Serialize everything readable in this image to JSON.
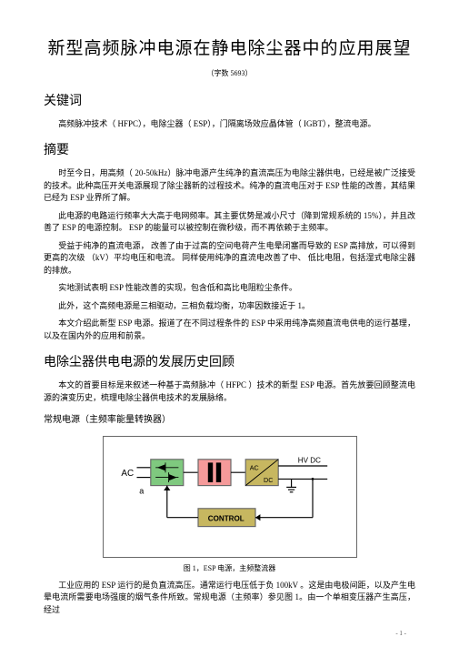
{
  "title": "新型高频脉冲电源在静电除尘器中的应用展望",
  "wordcount": "（字数  5693）",
  "sections": {
    "keywords": {
      "heading": "关键词",
      "p1": "高频脉冲技术（  HFPC），电除尘器（  ESP），门隔离场效应晶体管（  IGBT），整流电源。"
    },
    "abstract": {
      "heading": "摘要",
      "p1": "时至今日，用高频（  20-50kHz）脉冲电源产生纯净的直流高压为电除尘器供电，已经是被广泛接受的技术。此种高压开关电源展现了除尘器新的过程技术。纯净的直流电压对于     ESP 性能的改善，其结果已经为 ESP 业界所了解。",
      "p2": "此电源的电路运行频率大大高于电网频率。其主要优势是减小尺寸（降到常规系统的           15%），并且改善了 ESP 的电源控制。  ESP 的能量可以被控制在微秒级，而不再依赖于主频率。",
      "p3": "受益于纯净的直流电源，  改善了由于过高的空间电荷产生电晕闭塞而导致的    ESP 高排放，可以得到更高的次级 （kV）平均电压和电流。  同样使用纯净的直流电改善了中、  低比电阻，包括湿式电除尘器的排放。",
      "p4": "实地测试表明   ESP 性能改善的实现，包含低和高比电阻粒尘条件。",
      "p5": "此外，这个高频电源是三相驱动，三相负载均衡，功率因数接近于         1。",
      "p6": "本文介绍此新型   ESP 电源。报道了在不同过程条件的     ESP 中采用纯净高频直流电供电的运行基理，以及在国内外的应用和前景。"
    },
    "history": {
      "heading": "电除尘器供电电源的发展历史回顾",
      "p1": "本文的首要目标是来叙述一种基于高频脉冲（   HFPC ）技术的新型  ESP 电源。首先放要回顾整流电源的演变历史，梳理电除尘器供电技术的发展脉络。"
    },
    "conventional": {
      "heading": "常规电源（主频率能量转换器）"
    },
    "figure": {
      "caption": "图 1，ESP 电源，主频整流器",
      "labels": {
        "ac": "AC",
        "a": "a",
        "acdc1": "AC",
        "acdc2": "DC",
        "hvdc": "HV DC",
        "control": "CONTROL"
      },
      "colors": {
        "border": "#686868",
        "scr": "#7fc97f",
        "xfmr": "#f59a9a",
        "rect": "#c7b760",
        "ctrl": "#c7b760",
        "acbg": "#ffffff",
        "wire": "#000000"
      }
    },
    "afterfig": {
      "p1": "工业应用的  ESP 运行的是负直流高压。通常运行电压低于负       100kV 。这是由电极间距，以及产生电晕电流所需要电场强度的烟气条件所致。常规电源（主频率）参见图      1。由一个单相变压器产生高压，经过"
    }
  },
  "pagenum": "- 1 -"
}
